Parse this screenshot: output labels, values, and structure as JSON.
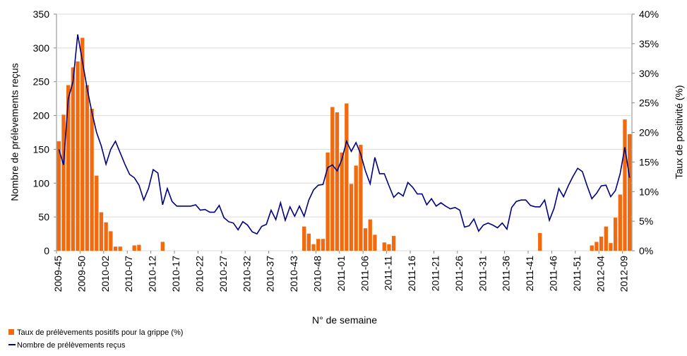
{
  "chart_data": {
    "type": "bar",
    "x_label": "N° de semaine",
    "y_label": "Nombre de prélèvements reçus",
    "y2_label": "Taux de positivité (%)",
    "categories": [
      "2009-45",
      null,
      null,
      null,
      null,
      "2009-50",
      null,
      null,
      null,
      null,
      "2010-02",
      null,
      null,
      null,
      null,
      "2010-07",
      null,
      null,
      null,
      null,
      "2010-12",
      null,
      null,
      null,
      null,
      "2010-17",
      null,
      null,
      null,
      null,
      "2010-22",
      null,
      null,
      null,
      null,
      "2010-27",
      null,
      null,
      null,
      null,
      "2010-32",
      null,
      null,
      null,
      null,
      "2010-37",
      null,
      null,
      null,
      null,
      "2010-43",
      null,
      null,
      null,
      null,
      "2010-48",
      null,
      null,
      null,
      null,
      "2011-01",
      null,
      null,
      null,
      null,
      "2011-06",
      null,
      null,
      null,
      null,
      "2011-11",
      null,
      null,
      null,
      null,
      "2011-16",
      null,
      null,
      null,
      null,
      "2011-21",
      null,
      null,
      null,
      null,
      "2011-26",
      null,
      null,
      null,
      null,
      "2011-31",
      null,
      null,
      null,
      null,
      "2011-36",
      null,
      null,
      null,
      null,
      "2011-41",
      null,
      null,
      null,
      null,
      "2011-46",
      null,
      null,
      null,
      null,
      "2011-51",
      null,
      null,
      null,
      null,
      "2012-04",
      null,
      null,
      null,
      null,
      "2012-09",
      null
    ],
    "ylim": [
      0,
      350
    ],
    "yticks": [
      0,
      50,
      100,
      150,
      200,
      250,
      300,
      350
    ],
    "y2lim": [
      0,
      40
    ],
    "y2ticks": [
      {
        "value": 0,
        "label": "0%"
      },
      {
        "value": 5,
        "label": "5%"
      },
      {
        "value": 10,
        "label": "10%"
      },
      {
        "value": 15,
        "label": "15%"
      },
      {
        "value": 20,
        "label": "20%"
      },
      {
        "value": 25,
        "label": "25%"
      },
      {
        "value": 30,
        "label": "30%"
      },
      {
        "value": 35,
        "label": "35%"
      },
      {
        "value": 40,
        "label": "40%"
      }
    ],
    "grid": true,
    "legend": "bottom-left",
    "series": [
      {
        "name": "Taux de prélèvements positifs pour la grippe (%)",
        "type": "bar",
        "axis": "y2",
        "color": "#f26a0f",
        "values": [
          18.5,
          23,
          28,
          31,
          32,
          36,
          28,
          24,
          12.7,
          6.5,
          4.8,
          3.3,
          0.7,
          0.7,
          0,
          0,
          0.9,
          1,
          0,
          0,
          0,
          0,
          1.5,
          0,
          0,
          0,
          0,
          0,
          0,
          0,
          0,
          0,
          0,
          0,
          0,
          0,
          0,
          0,
          0,
          0,
          0,
          0,
          0,
          0,
          0,
          0,
          0,
          0,
          0,
          0,
          0,
          0,
          4.1,
          2.9,
          1.1,
          2,
          2,
          16.6,
          24.3,
          23.4,
          16.6,
          24.9,
          11.3,
          14.4,
          17.9,
          3.8,
          5.3,
          2.7,
          0,
          1.4,
          1.1,
          2.5,
          0,
          0,
          0,
          0,
          0,
          0,
          0,
          0,
          0,
          0,
          0,
          0,
          0,
          0,
          0,
          0,
          0,
          0,
          0,
          0,
          0,
          0,
          0,
          0,
          0,
          0,
          0,
          0,
          0,
          0,
          3,
          0,
          0,
          0,
          0,
          0,
          0,
          0,
          0,
          0,
          0,
          0.9,
          1.5,
          2.4,
          4.1,
          1.3,
          5.6,
          9.5,
          22.2,
          19.7
        ]
      },
      {
        "name": "Nombre de prélèvements reçus",
        "type": "line",
        "axis": "y",
        "color": "#000080",
        "values": [
          150,
          127,
          225,
          250,
          320,
          280,
          240,
          205,
          175,
          155,
          128,
          150,
          162,
          145,
          128,
          113,
          108,
          97,
          75,
          92,
          120,
          115,
          68,
          92,
          73,
          66,
          66,
          66,
          66,
          68,
          60,
          61,
          57,
          57,
          67,
          49,
          43,
          41,
          31,
          43,
          38,
          28,
          25,
          36,
          39,
          60,
          46,
          71,
          45,
          65,
          51,
          66,
          51,
          75,
          90,
          97,
          98,
          123,
          127,
          118,
          135,
          162,
          147,
          160,
          143,
          118,
          99,
          138,
          114,
          114,
          96,
          79,
          86,
          81,
          101,
          94,
          84,
          84,
          68,
          77,
          66,
          71,
          66,
          62,
          64,
          60,
          35,
          37,
          47,
          29,
          38,
          41,
          38,
          34,
          41,
          32,
          64,
          73,
          75,
          75,
          67,
          65,
          65,
          75,
          45,
          63,
          92,
          80,
          96,
          110,
          122,
          117,
          96,
          77,
          85,
          96,
          97,
          80,
          89,
          114,
          153,
          108
        ]
      }
    ]
  }
}
